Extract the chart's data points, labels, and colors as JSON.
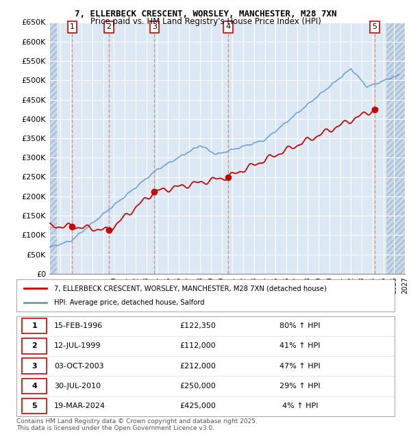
{
  "title_line1": "7, ELLERBECK CRESCENT, WORSLEY, MANCHESTER, M28 7XN",
  "title_line2": "Price paid vs. HM Land Registry's House Price Index (HPI)",
  "ylim": [
    0,
    650000
  ],
  "yticks": [
    0,
    50000,
    100000,
    150000,
    200000,
    250000,
    300000,
    350000,
    400000,
    450000,
    500000,
    550000,
    600000,
    650000
  ],
  "ytick_labels": [
    "£0",
    "£50K",
    "£100K",
    "£150K",
    "£200K",
    "£250K",
    "£300K",
    "£350K",
    "£400K",
    "£450K",
    "£500K",
    "£550K",
    "£600K",
    "£650K"
  ],
  "xlim_start": 1994.0,
  "xlim_end": 2027.0,
  "bg_color": "#dce9f5",
  "grid_color": "#ffffff",
  "sale_color": "#cc0000",
  "hpi_color": "#6699cc",
  "purchases": [
    {
      "label": 1,
      "date_num": 1996.12,
      "price": 122350
    },
    {
      "label": 2,
      "date_num": 1999.53,
      "price": 112000
    },
    {
      "label": 3,
      "date_num": 2003.75,
      "price": 212000
    },
    {
      "label": 4,
      "date_num": 2010.58,
      "price": 250000
    },
    {
      "label": 5,
      "date_num": 2024.21,
      "price": 425000
    }
  ],
  "legend_line1": "7, ELLERBECK CRESCENT, WORSLEY, MANCHESTER, M28 7XN (detached house)",
  "legend_line2": "HPI: Average price, detached house, Salford",
  "table_data": [
    {
      "num": 1,
      "date": "15-FEB-1996",
      "price": "£122,350",
      "hpi": "80% ↑ HPI"
    },
    {
      "num": 2,
      "date": "12-JUL-1999",
      "price": "£112,000",
      "hpi": "41% ↑ HPI"
    },
    {
      "num": 3,
      "date": "03-OCT-2003",
      "price": "£212,000",
      "hpi": "47% ↑ HPI"
    },
    {
      "num": 4,
      "date": "30-JUL-2010",
      "price": "£250,000",
      "hpi": "29% ↑ HPI"
    },
    {
      "num": 5,
      "date": "19-MAR-2024",
      "price": "£425,000",
      "hpi": "4% ↑ HPI"
    }
  ],
  "footnote": "Contains HM Land Registry data © Crown copyright and database right 2025.\nThis data is licensed under the Open Government Licence v3.0."
}
